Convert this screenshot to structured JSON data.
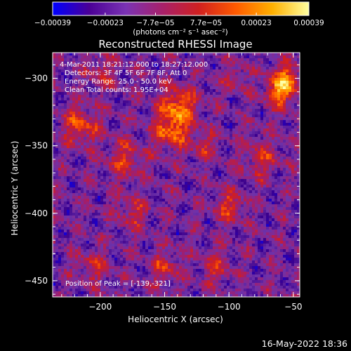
{
  "chart_data": {
    "type": "heatmap",
    "title": "Reconstructed RHESSI Image",
    "xlabel": "Heliocentric X (arcsec)",
    "ylabel": "Heliocentric Y (arcsec)",
    "xlim": [
      -237,
      -45
    ],
    "ylim": [
      -462,
      -281
    ],
    "x_ticks": [
      {
        "value": -200,
        "label": "−200"
      },
      {
        "value": -150,
        "label": "−150"
      },
      {
        "value": -100,
        "label": "−100"
      },
      {
        "value": -50,
        "label": "−50"
      }
    ],
    "y_ticks": [
      {
        "value": -300,
        "label": "−300"
      },
      {
        "value": -350,
        "label": "−350"
      },
      {
        "value": -400,
        "label": "−400"
      },
      {
        "value": -450,
        "label": "−450"
      }
    ],
    "colorbar": {
      "min": -0.00039,
      "max": 0.00039,
      "ticks": [
        {
          "value": -0.00039,
          "label": "−0.00039"
        },
        {
          "value": -0.00023,
          "label": "−0.00023"
        },
        {
          "value": -7.7e-05,
          "label": "−7.7e−05"
        },
        {
          "value": 7.7e-05,
          "label": "7.7e−05"
        },
        {
          "value": 0.00023,
          "label": "0.00023"
        },
        {
          "value": 0.00039,
          "label": "0.00039"
        }
      ],
      "unit_label": "(photons cm⁻² s⁻¹ asec⁻²)",
      "colors": [
        "#0000ff",
        "#4b0096",
        "#7a33b4",
        "#a8206a",
        "#d02020",
        "#ff5a00",
        "#ffb000",
        "#ffffa0"
      ]
    },
    "annotations": [
      "4-Mar-2011 18:21:12.000 to 18:27:12.000",
      "Detectors: 3F 4F 5F 6F 7F 8F, Att 0",
      "Energy Range: 25.0 - 50.0 keV",
      "Clean     Total counts: 1.95E+04"
    ],
    "peak_label": "Position of Peak = [-139,-321]",
    "peak": {
      "x": -139,
      "y": -321
    },
    "grid": false
  },
  "footer": {
    "timestamp": "16-May-2022 18:36"
  }
}
